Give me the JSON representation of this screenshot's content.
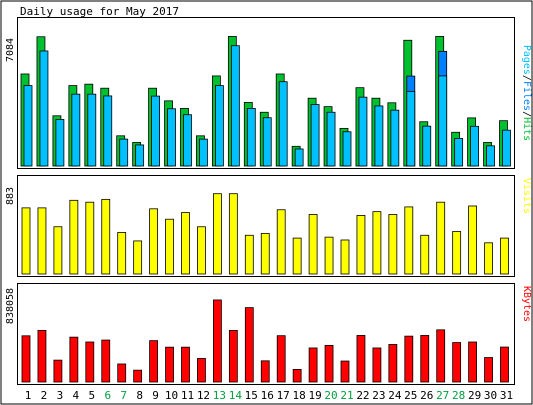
{
  "chart_data": {
    "type": "bar",
    "title": "Daily usage for May 2017",
    "categories": [
      "1",
      "2",
      "3",
      "4",
      "5",
      "6",
      "7",
      "8",
      "9",
      "10",
      "11",
      "12",
      "13",
      "14",
      "15",
      "16",
      "17",
      "18",
      "19",
      "20",
      "21",
      "22",
      "23",
      "24",
      "25",
      "26",
      "27",
      "28",
      "29",
      "30",
      "31"
    ],
    "weekend_days": [
      "6",
      "7",
      "13",
      "14",
      "20",
      "21",
      "27",
      "28"
    ],
    "panels": [
      {
        "id": "top",
        "ylabel_parts": [
          "Pages",
          "/",
          "Files",
          "/",
          "Hits"
        ],
        "ylabel_colors": [
          "#00c0ff",
          "#000000",
          "#0080ff",
          "#000000",
          "#00c030"
        ],
        "tick_label": "7084",
        "tick_value": 7084,
        "ylim": [
          0,
          8200
        ],
        "series": [
          {
            "name": "Hits",
            "color": "#00c030",
            "values": [
              5240,
              7360,
              2860,
              4580,
              4660,
              4430,
              1720,
              1340,
              4430,
              3710,
              3280,
              1720,
              5130,
              7380,
              3620,
              3060,
              5240,
              1120,
              3860,
              3380,
              2140,
              4460,
              3860,
              3600,
              7160,
              2520,
              7380,
              1920,
              2740,
              1340,
              2580
            ]
          },
          {
            "name": "Files",
            "color": "#0080ff",
            "values": [
              0,
              0,
              0,
              0,
              0,
              0,
              0,
              0,
              0,
              0,
              0,
              0,
              0,
              0,
              0,
              0,
              0,
              0,
              0,
              0,
              0,
              0,
              0,
              0,
              5120,
              0,
              6530,
              0,
              0,
              0,
              0
            ]
          },
          {
            "name": "Pages",
            "color": "#00c0ff",
            "values": [
              4580,
              6550,
              2650,
              4090,
              4090,
              3990,
              1530,
              1200,
              3980,
              3260,
              2920,
              1530,
              4580,
              6850,
              3280,
              2750,
              4800,
              970,
              3500,
              3060,
              1950,
              3920,
              3420,
              3180,
              4250,
              2270,
              5130,
              1570,
              2260,
              1150,
              2040
            ]
          }
        ]
      },
      {
        "id": "middle",
        "ylabel_parts": [
          "Visits"
        ],
        "ylabel_colors": [
          "#ffff00"
        ],
        "tick_label": "883",
        "tick_value": 883,
        "ylim": [
          0,
          995
        ],
        "series": [
          {
            "name": "Visits",
            "color": "#ffff00",
            "values": [
              700,
              700,
              500,
              780,
              760,
              790,
              440,
              350,
              690,
              580,
              650,
              500,
              850,
              850,
              410,
              430,
              680,
              380,
              630,
              390,
              360,
              620,
              660,
              630,
              710,
              410,
              760,
              450,
              720,
              330,
              380
            ]
          }
        ]
      },
      {
        "id": "bottom",
        "ylabel_parts": [
          "KBytes"
        ],
        "ylabel_colors": [
          "#ff0000"
        ],
        "tick_label": "838058",
        "tick_value": 838058,
        "ylim": [
          0,
          834000
        ],
        "series": [
          {
            "name": "KBytes",
            "color": "#ff0000",
            "values": [
              410000,
              458000,
              194000,
              398000,
              355000,
              372000,
              160000,
              105000,
              367000,
              309000,
              309000,
              209000,
              728000,
              458000,
              660000,
              188000,
              411000,
              112000,
              302000,
              325000,
              186000,
              413000,
              302000,
              333000,
              407000,
              413000,
              463000,
              350000,
              355000,
              217000,
              310000
            ]
          }
        ]
      }
    ]
  }
}
